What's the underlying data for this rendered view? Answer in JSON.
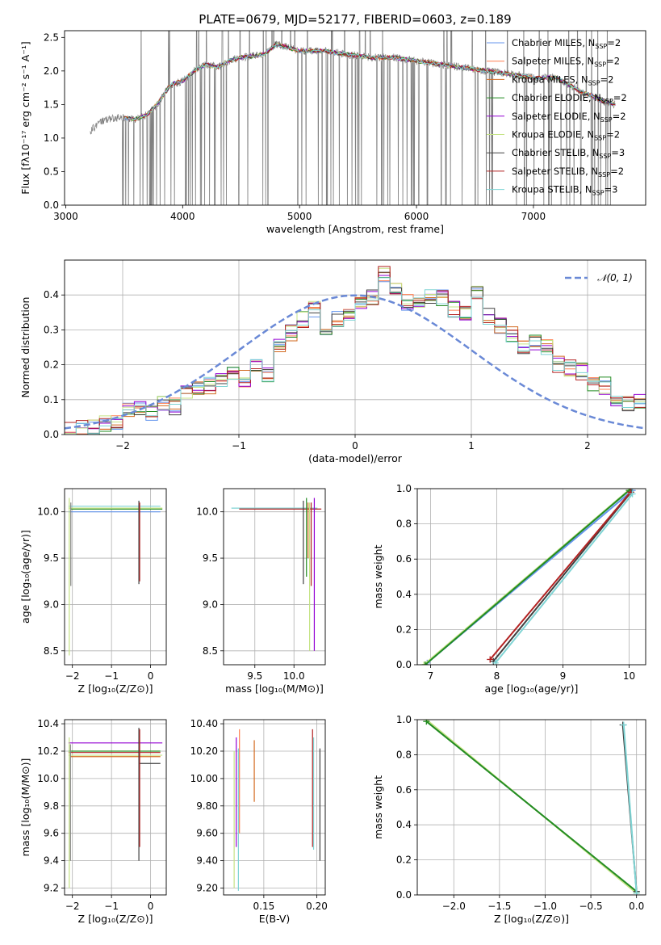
{
  "figure": {
    "title": "PLATE=0679, MJD=52177, FIBERID=0603, z=0.189"
  },
  "chart_data": [
    {
      "id": "spectrum",
      "type": "line",
      "xlabel": "wavelength [Angstrom, rest frame]",
      "ylabel": "Flux [fλ10⁻¹⁷ erg cm⁻² s⁻¹ A⁻¹]",
      "xlim": [
        2990,
        7960
      ],
      "ylim": [
        0,
        2.6
      ],
      "xticks": [
        3000,
        4000,
        5000,
        6000,
        7000
      ],
      "yticks": [
        0.0,
        0.5,
        1.0,
        1.5,
        2.0,
        2.5
      ],
      "data_color": "#808080",
      "continuum": {
        "x": [
          3210,
          3300,
          3400,
          3500,
          3600,
          3700,
          3800,
          3900,
          4000,
          4100,
          4200,
          4300,
          4400,
          4500,
          4600,
          4700,
          4800,
          4900,
          5000,
          5200,
          5400,
          5600,
          5800,
          6000,
          6200,
          6400,
          6600,
          6800,
          7000,
          7200,
          7400,
          7600,
          7700
        ],
        "y": [
          1.1,
          1.25,
          1.3,
          1.3,
          1.28,
          1.35,
          1.55,
          1.8,
          1.85,
          2.0,
          2.1,
          2.05,
          2.15,
          2.2,
          2.22,
          2.25,
          2.4,
          2.35,
          2.3,
          2.3,
          2.25,
          2.2,
          2.2,
          2.15,
          2.1,
          2.05,
          2.0,
          1.95,
          1.9,
          1.9,
          1.7,
          1.55,
          1.5
        ]
      },
      "legend_position": "top-right",
      "legend": [
        {
          "label": "Chabrier MILES, N",
          "sub": "SSP",
          "tail": "=2",
          "color": "#6495ed"
        },
        {
          "label": "Salpeter MILES, N",
          "sub": "SSP",
          "tail": "=2",
          "color": "#ff7f50"
        },
        {
          "label": "Kroupa MILES, N",
          "sub": "SSP",
          "tail": "=2",
          "color": "#d2691e"
        },
        {
          "label": "Chabrier ELODIE, N",
          "sub": "SSP",
          "tail": "=2",
          "color": "#228b22"
        },
        {
          "label": "Salpeter ELODIE, N",
          "sub": "SSP",
          "tail": "=2",
          "color": "#9400d3"
        },
        {
          "label": "Kroupa ELODIE, N",
          "sub": "SSP",
          "tail": "=2",
          "color": "#c5e384"
        },
        {
          "label": "Chabrier STELIB, N",
          "sub": "SSP",
          "tail": "=3",
          "color": "#404040"
        },
        {
          "label": "Salpeter STELIB, N",
          "sub": "SSP",
          "tail": "=2",
          "color": "#b22222"
        },
        {
          "label": "Kroupa STELIB, N",
          "sub": "SSP",
          "tail": "=3",
          "color": "#7fd4d4"
        }
      ]
    },
    {
      "id": "residuals",
      "type": "histogram",
      "xlabel": "(data-model)/error",
      "ylabel": "Normed distribution",
      "xlim": [
        -2.5,
        2.5
      ],
      "ylim": [
        0,
        0.5
      ],
      "xticks": [
        -2,
        -1,
        0,
        1,
        2
      ],
      "yticks": [
        0.0,
        0.1,
        0.2,
        0.3,
        0.4
      ],
      "bin_start": -2.5,
      "bin_width": 0.1,
      "counts": [
        0.01,
        0.02,
        0.02,
        0.03,
        0.04,
        0.07,
        0.07,
        0.06,
        0.09,
        0.08,
        0.12,
        0.13,
        0.14,
        0.16,
        0.18,
        0.16,
        0.19,
        0.17,
        0.25,
        0.29,
        0.33,
        0.36,
        0.3,
        0.33,
        0.34,
        0.37,
        0.39,
        0.46,
        0.42,
        0.38,
        0.37,
        0.4,
        0.39,
        0.36,
        0.35,
        0.4,
        0.34,
        0.31,
        0.29,
        0.25,
        0.26,
        0.25,
        0.2,
        0.19,
        0.18,
        0.15,
        0.14,
        0.1,
        0.09,
        0.1
      ],
      "gaussian_label": "𝒩(0, 1)",
      "gaussian_color": "#6a89d6",
      "series": [
        {
          "name": "Chabrier MILES",
          "color": "#6495ed",
          "offset": 0
        },
        {
          "name": "Salpeter MILES",
          "color": "#ff7f50",
          "offset": 1
        },
        {
          "name": "Kroupa MILES",
          "color": "#d2691e",
          "offset": 2
        },
        {
          "name": "Chabrier ELODIE",
          "color": "#228b22",
          "offset": 3
        },
        {
          "name": "Salpeter ELODIE",
          "color": "#9400d3",
          "offset": 4
        },
        {
          "name": "Kroupa ELODIE",
          "color": "#c5e384",
          "offset": 5
        },
        {
          "name": "Chabrier STELIB",
          "color": "#404040",
          "offset": 6
        },
        {
          "name": "Salpeter STELIB",
          "color": "#b22222",
          "offset": 7
        },
        {
          "name": "Kroupa STELIB",
          "color": "#7fd4d4",
          "offset": 8
        }
      ]
    },
    {
      "id": "age_vs_Z",
      "type": "errorbar",
      "xlabel": "Z [log₁₀(Z/Z⊙)]",
      "ylabel": "age  [log₁₀(age/yr)]",
      "xlim": [
        -2.2,
        0.4
      ],
      "ylim": [
        8.35,
        10.25
      ],
      "xticks": [
        -2,
        -1,
        0
      ],
      "yticks": [
        8.5,
        9.0,
        9.5,
        10.0
      ],
      "hbars": [
        {
          "x0": -2.1,
          "x1": 0.25,
          "y": 10.0,
          "color": "#6495ed"
        },
        {
          "x0": -2.05,
          "x1": 0.3,
          "y": 10.03,
          "color": "#228b22"
        },
        {
          "x0": -2.1,
          "x1": 0.3,
          "y": 10.04,
          "color": "#c5e384"
        },
        {
          "x0": -2.1,
          "x1": 0.25,
          "y": 10.06,
          "color": "#7fd4d4"
        }
      ],
      "vbars": [
        {
          "x": -2.08,
          "y0": 8.45,
          "y1": 10.15,
          "color": "#c5e384"
        },
        {
          "x": -2.04,
          "y0": 9.2,
          "y1": 10.1,
          "color": "#808080"
        },
        {
          "x": -0.3,
          "y0": 9.22,
          "y1": 10.12,
          "color": "#404040"
        },
        {
          "x": -0.28,
          "y0": 9.25,
          "y1": 10.1,
          "color": "#b22222"
        }
      ]
    },
    {
      "id": "age_vs_mass",
      "type": "errorbar",
      "xlabel": "mass [log₁₀(M/M⊙)]",
      "ylabel": "",
      "xlim": [
        9.1,
        10.4
      ],
      "ylim": [
        8.35,
        10.25
      ],
      "xticks": [
        9.5,
        10.0
      ],
      "yticks": [
        8.5,
        9.0,
        9.5,
        10.0
      ],
      "hbars": [
        {
          "x0": 9.2,
          "x1": 10.3,
          "y": 10.04,
          "color": "#7fd4d4"
        },
        {
          "x0": 9.3,
          "x1": 10.35,
          "y": 10.03,
          "color": "#b22222"
        }
      ],
      "vbars": [
        {
          "x": 10.12,
          "y0": 9.22,
          "y1": 10.12,
          "color": "#404040"
        },
        {
          "x": 10.16,
          "y0": 9.3,
          "y1": 10.15,
          "color": "#228b22"
        },
        {
          "x": 10.2,
          "y0": 8.5,
          "y1": 10.1,
          "color": "#c5e384"
        },
        {
          "x": 10.22,
          "y0": 9.2,
          "y1": 10.1,
          "color": "#b22222"
        },
        {
          "x": 10.26,
          "y0": 8.5,
          "y1": 10.15,
          "color": "#9400d3"
        },
        {
          "x": 10.18,
          "y0": 9.5,
          "y1": 10.1,
          "color": "#d2691e"
        }
      ]
    },
    {
      "id": "weight_vs_age",
      "type": "line",
      "xlabel": "age  [log₁₀(age/yr)]",
      "ylabel": "mass weight",
      "xlim": [
        6.8,
        10.25
      ],
      "ylim": [
        0,
        1.0
      ],
      "xticks": [
        7,
        8,
        9,
        10
      ],
      "yticks": [
        0.0,
        0.2,
        0.4,
        0.6,
        0.8,
        1.0
      ],
      "series": [
        {
          "name": "Chabrier MILES",
          "color": "#6495ed",
          "x": [
            6.95,
            10.05
          ],
          "y": [
            0.01,
            0.99
          ]
        },
        {
          "name": "Kroupa ELODIE",
          "color": "#c5e384",
          "x": [
            6.9,
            10.02
          ],
          "y": [
            0.0,
            1.0
          ]
        },
        {
          "name": "Chabrier ELODIE",
          "color": "#228b22",
          "x": [
            6.92,
            10.0
          ],
          "y": [
            0.0,
            0.99
          ]
        },
        {
          "name": "Chabrier STELIB",
          "color": "#404040",
          "x": [
            7.95,
            10.03
          ],
          "y": [
            0.02,
            0.98
          ]
        },
        {
          "name": "Salpeter STELIB",
          "color": "#b22222",
          "x": [
            7.9,
            10.02
          ],
          "y": [
            0.03,
            0.98
          ]
        },
        {
          "name": "Kroupa STELIB",
          "color": "#7fd4d4",
          "x": [
            7.98,
            10.05
          ],
          "y": [
            0.01,
            0.97
          ]
        }
      ]
    },
    {
      "id": "mass_vs_Z",
      "type": "errorbar",
      "xlabel": "Z [log₁₀(Z/Z⊙)]",
      "ylabel": "mass [log₁₀(M/M⊙)]",
      "xlim": [
        -2.2,
        0.4
      ],
      "ylim": [
        9.15,
        10.43
      ],
      "xticks": [
        -2,
        -1,
        0
      ],
      "yticks": [
        9.2,
        9.4,
        9.6,
        9.8,
        10.0,
        10.2,
        10.4
      ],
      "hbars": [
        {
          "x0": -2.1,
          "x1": 0.3,
          "y": 10.26,
          "color": "#9400d3"
        },
        {
          "x0": -2.1,
          "x1": 0.25,
          "y": 10.2,
          "color": "#228b22"
        },
        {
          "x0": -2.1,
          "x1": 0.25,
          "y": 10.19,
          "color": "#b22222"
        },
        {
          "x0": -2.1,
          "x1": 0.3,
          "y": 10.17,
          "color": "#c5e384"
        },
        {
          "x0": -2.05,
          "x1": 0.25,
          "y": 10.16,
          "color": "#d2691e"
        },
        {
          "x0": -0.3,
          "x1": 0.25,
          "y": 10.11,
          "color": "#404040"
        }
      ],
      "vbars": [
        {
          "x": -2.08,
          "y0": 9.2,
          "y1": 10.3,
          "color": "#c5e384"
        },
        {
          "x": -2.05,
          "y0": 9.4,
          "y1": 10.25,
          "color": "#808080"
        },
        {
          "x": -0.3,
          "y0": 9.4,
          "y1": 10.37,
          "color": "#404040"
        },
        {
          "x": -0.28,
          "y0": 9.5,
          "y1": 10.36,
          "color": "#b22222"
        }
      ]
    },
    {
      "id": "mass_vs_ebv",
      "type": "errorbar",
      "xlabel": "E(B-V)",
      "ylabel": "",
      "xlim": [
        0.112,
        0.208
      ],
      "ylim": [
        9.15,
        10.43
      ],
      "xticks": [
        0.15,
        0.2
      ],
      "yticks": [
        9.2,
        9.4,
        9.6,
        9.8,
        10.0,
        10.2,
        10.4
      ],
      "vbars": [
        {
          "x": 0.122,
          "y0": 9.2,
          "y1": 10.2,
          "color": "#c5e384"
        },
        {
          "x": 0.124,
          "y0": 9.5,
          "y1": 10.3,
          "color": "#9400d3"
        },
        {
          "x": 0.126,
          "y0": 9.18,
          "y1": 10.22,
          "color": "#7fd4d4"
        },
        {
          "x": 0.127,
          "y0": 9.6,
          "y1": 10.36,
          "color": "#ff7f50"
        },
        {
          "x": 0.141,
          "y0": 9.83,
          "y1": 10.28,
          "color": "#d2691e"
        },
        {
          "x": 0.196,
          "y0": 9.5,
          "y1": 10.36,
          "color": "#b22222"
        },
        {
          "x": 0.197,
          "y0": 9.48,
          "y1": 10.3,
          "color": "#7fd4d4"
        },
        {
          "x": 0.203,
          "y0": 9.4,
          "y1": 10.22,
          "color": "#404040"
        }
      ]
    },
    {
      "id": "weight_vs_Z",
      "type": "line",
      "xlabel": "Z [log₁₀(Z/Z⊙)]",
      "ylabel": "mass weight",
      "xlim": [
        -2.4,
        0.1
      ],
      "ylim": [
        0,
        1.0
      ],
      "xticks": [
        -2.0,
        -1.5,
        -1.0,
        -0.5,
        0.0
      ],
      "yticks": [
        0.0,
        0.2,
        0.4,
        0.6,
        0.8,
        1.0
      ],
      "series": [
        {
          "name": "Kroupa ELODIE",
          "color": "#c5e384",
          "x": [
            -2.3,
            0.0
          ],
          "y": [
            1.0,
            0.01
          ]
        },
        {
          "name": "Chabrier ELODIE",
          "color": "#228b22",
          "x": [
            -2.3,
            0.0
          ],
          "y": [
            0.99,
            0.02
          ]
        },
        {
          "name": "Chabrier STELIB",
          "color": "#404040",
          "x": [
            -0.15,
            0.0
          ],
          "y": [
            0.97,
            0.02
          ]
        },
        {
          "name": "Kroupa STELIB",
          "color": "#7fd4d4",
          "x": [
            -0.14,
            0.0
          ],
          "y": [
            0.97,
            0.01
          ]
        }
      ]
    }
  ]
}
